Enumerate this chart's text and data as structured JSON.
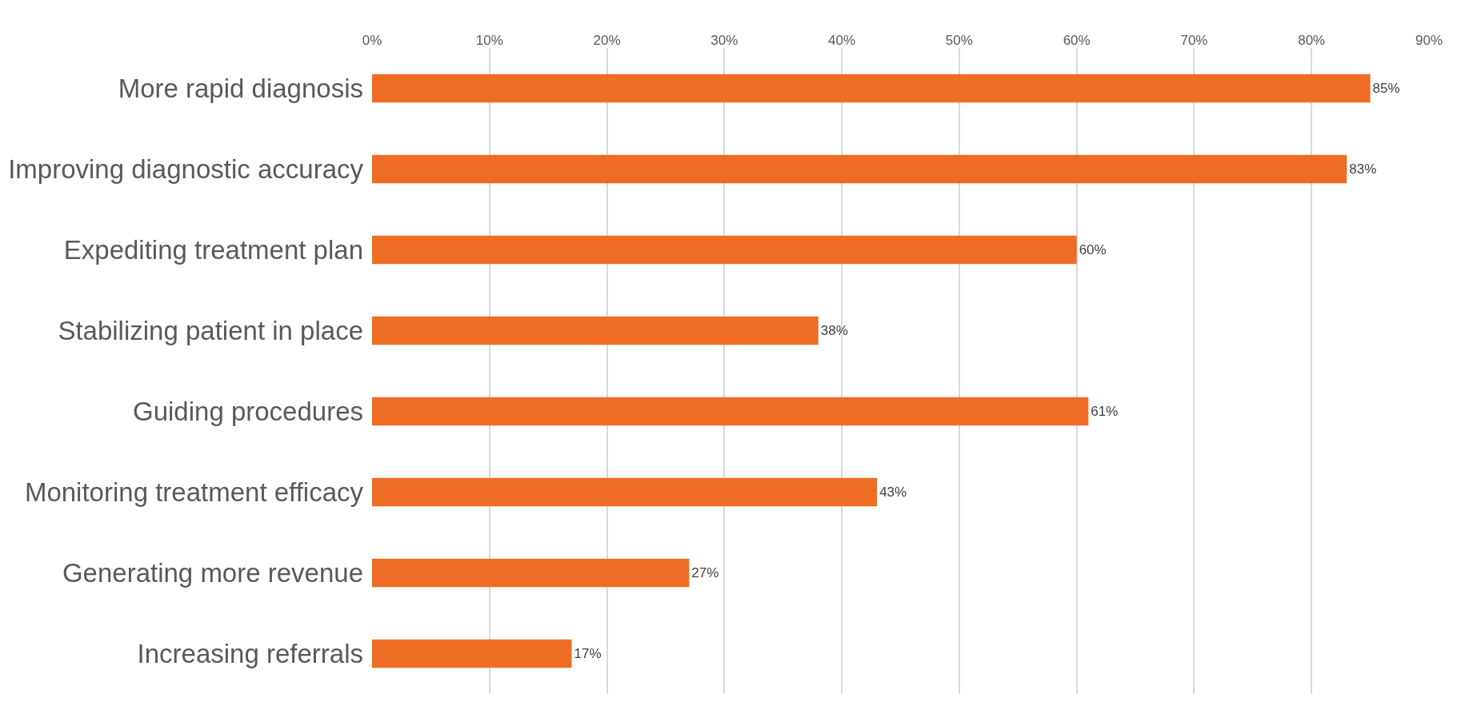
{
  "chart_data": {
    "type": "bar",
    "orientation": "horizontal",
    "categories": [
      "More rapid diagnosis",
      "Improving diagnostic accuracy",
      "Expediting treatment plan",
      "Stabilizing patient in place",
      "Guiding procedures",
      "Monitoring treatment efficacy",
      "Generating more revenue",
      "Increasing referrals"
    ],
    "values": [
      85,
      83,
      60,
      38,
      61,
      43,
      27,
      17
    ],
    "value_labels": [
      "85%",
      "83%",
      "60%",
      "38%",
      "61%",
      "43%",
      "27%",
      "17%"
    ],
    "color": "#ee6c24",
    "xlim": [
      0,
      90
    ],
    "xticks": [
      {
        "value": 0,
        "label": "0%"
      },
      {
        "value": 10,
        "label": "10%"
      },
      {
        "value": 20,
        "label": "20%"
      },
      {
        "value": 30,
        "label": "30%"
      },
      {
        "value": 40,
        "label": "40%"
      },
      {
        "value": 50,
        "label": "50%"
      },
      {
        "value": 60,
        "label": "60%"
      },
      {
        "value": 70,
        "label": "70%"
      },
      {
        "value": 80,
        "label": "80%"
      },
      {
        "value": 90,
        "label": "90%"
      }
    ],
    "grid": "x",
    "legend": false
  }
}
